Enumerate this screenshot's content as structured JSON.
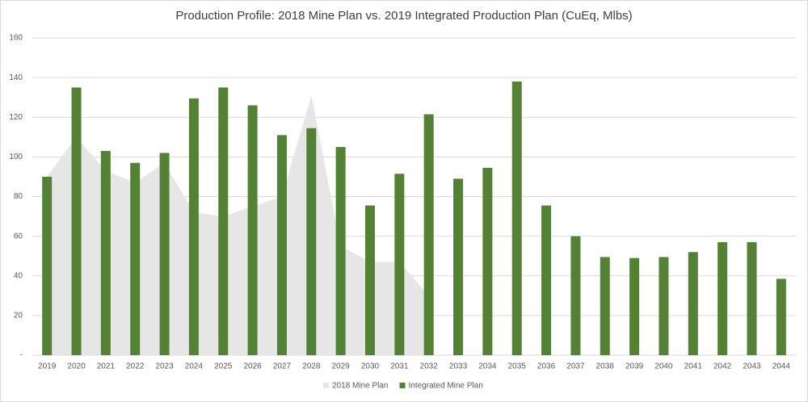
{
  "chart_data": {
    "type": "bar",
    "title": "Production Profile: 2018 Mine Plan vs. 2019 Integrated Production Plan (CuEq, Mlbs)",
    "categories": [
      "2019",
      "2020",
      "2021",
      "2022",
      "2023",
      "2024",
      "2025",
      "2026",
      "2027",
      "2028",
      "2029",
      "2030",
      "2031",
      "2032",
      "2033",
      "2034",
      "2035",
      "2036",
      "2037",
      "2038",
      "2039",
      "2040",
      "2041",
      "2042",
      "2043",
      "2044"
    ],
    "series": [
      {
        "name": "2018 Mine Plan",
        "type": "area",
        "color": "#e7e6e6",
        "values": [
          90,
          110,
          93,
          87,
          97,
          72,
          70,
          75,
          80,
          131,
          55,
          47,
          47,
          30,
          null,
          null,
          null,
          null,
          null,
          null,
          null,
          null,
          null,
          null,
          null,
          null
        ]
      },
      {
        "name": "Integrated Mine Plan",
        "type": "bar",
        "color": "#548235",
        "values": [
          90,
          135,
          103,
          97,
          102,
          129.5,
          135,
          126,
          111,
          114.5,
          105,
          75.5,
          91.5,
          121.5,
          89,
          94.5,
          138,
          75.5,
          60,
          49.5,
          49,
          49.5,
          52,
          57,
          57,
          38.5
        ]
      }
    ],
    "ylim": [
      0,
      160
    ],
    "yticks": [
      {
        "value": 0,
        "label": "-"
      },
      20,
      40,
      60,
      80,
      100,
      120,
      140,
      160
    ],
    "grid": true,
    "legend": "bottom"
  }
}
